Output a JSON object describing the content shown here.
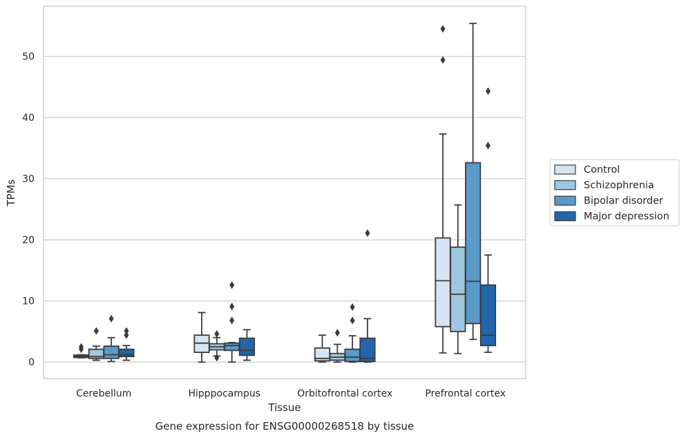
{
  "chart_data": {
    "type": "box",
    "title": "",
    "caption": "Gene expression for ENSG00000268518 by tissue",
    "xlabel": "Tissue",
    "ylabel": "TPMs",
    "ylim": [
      -2.7,
      58.2
    ],
    "yticks": [
      0,
      10,
      20,
      30,
      40,
      50
    ],
    "grid": "horizontal",
    "legend_position": "right",
    "categories": [
      "Cerebellum",
      "Hipppocampus",
      "Orbitofrontal cortex",
      "Prefrontal cortex"
    ],
    "series": [
      {
        "name": "Control",
        "color": "#d6e5f3",
        "boxes": [
          {
            "whislo": 0.7,
            "q1": 0.75,
            "med": 0.95,
            "q3": 1.15,
            "whishi": 1.2,
            "fliers": [
              2.1,
              2.5
            ]
          },
          {
            "whislo": 0.0,
            "q1": 1.6,
            "med": 3.1,
            "q3": 4.4,
            "whishi": 8.1,
            "fliers": []
          },
          {
            "whislo": 0.0,
            "q1": 0.2,
            "med": 0.6,
            "q3": 2.3,
            "whishi": 4.4,
            "fliers": []
          },
          {
            "whislo": 1.5,
            "q1": 5.8,
            "med": 13.3,
            "q3": 20.3,
            "whishi": 37.3,
            "fliers": [
              49.4,
              54.5
            ]
          }
        ]
      },
      {
        "name": "Schizophrenia",
        "color": "#9dc6e0",
        "boxes": [
          {
            "whislo": 0.3,
            "q1": 0.6,
            "med": 0.9,
            "q3": 2.1,
            "whishi": 2.6,
            "fliers": [
              5.1
            ]
          },
          {
            "whislo": 1.0,
            "q1": 2.0,
            "med": 2.5,
            "q3": 3.0,
            "whishi": 4.0,
            "fliers": [
              0.7,
              4.6
            ]
          },
          {
            "whislo": 0.0,
            "q1": 0.3,
            "med": 0.8,
            "q3": 1.4,
            "whishi": 2.9,
            "fliers": [
              4.8
            ]
          },
          {
            "whislo": 1.4,
            "q1": 5.0,
            "med": 11.1,
            "q3": 18.8,
            "whishi": 25.7,
            "fliers": []
          }
        ]
      },
      {
        "name": "Bipolar disorder",
        "color": "#5a9ac9",
        "boxes": [
          {
            "whislo": 0.1,
            "q1": 0.6,
            "med": 1.2,
            "q3": 2.6,
            "whishi": 4.0,
            "fliers": [
              7.1
            ]
          },
          {
            "whislo": 0.0,
            "q1": 1.9,
            "med": 2.7,
            "q3": 3.1,
            "whishi": 3.2,
            "fliers": [
              6.8,
              9.1,
              12.6
            ]
          },
          {
            "whislo": 0.0,
            "q1": 0.1,
            "med": 0.8,
            "q3": 2.1,
            "whishi": 4.3,
            "fliers": [
              6.8,
              9.0
            ]
          },
          {
            "whislo": 3.7,
            "q1": 6.3,
            "med": 13.2,
            "q3": 32.6,
            "whishi": 55.4,
            "fliers": []
          }
        ]
      },
      {
        "name": "Major depression",
        "color": "#2166ac",
        "boxes": [
          {
            "whislo": 0.3,
            "q1": 0.9,
            "med": 1.2,
            "q3": 2.1,
            "whishi": 2.7,
            "fliers": [
              4.4,
              5.1
            ]
          },
          {
            "whislo": 0.3,
            "q1": 1.1,
            "med": 1.9,
            "q3": 3.9,
            "whishi": 5.3,
            "fliers": []
          },
          {
            "whislo": 0.0,
            "q1": 0.1,
            "med": 0.6,
            "q3": 3.9,
            "whishi": 7.1,
            "fliers": [
              21.1
            ]
          },
          {
            "whislo": 1.6,
            "q1": 2.7,
            "med": 4.4,
            "q3": 12.6,
            "whishi": 17.5,
            "fliers": [
              35.4,
              44.3
            ]
          }
        ]
      }
    ]
  }
}
